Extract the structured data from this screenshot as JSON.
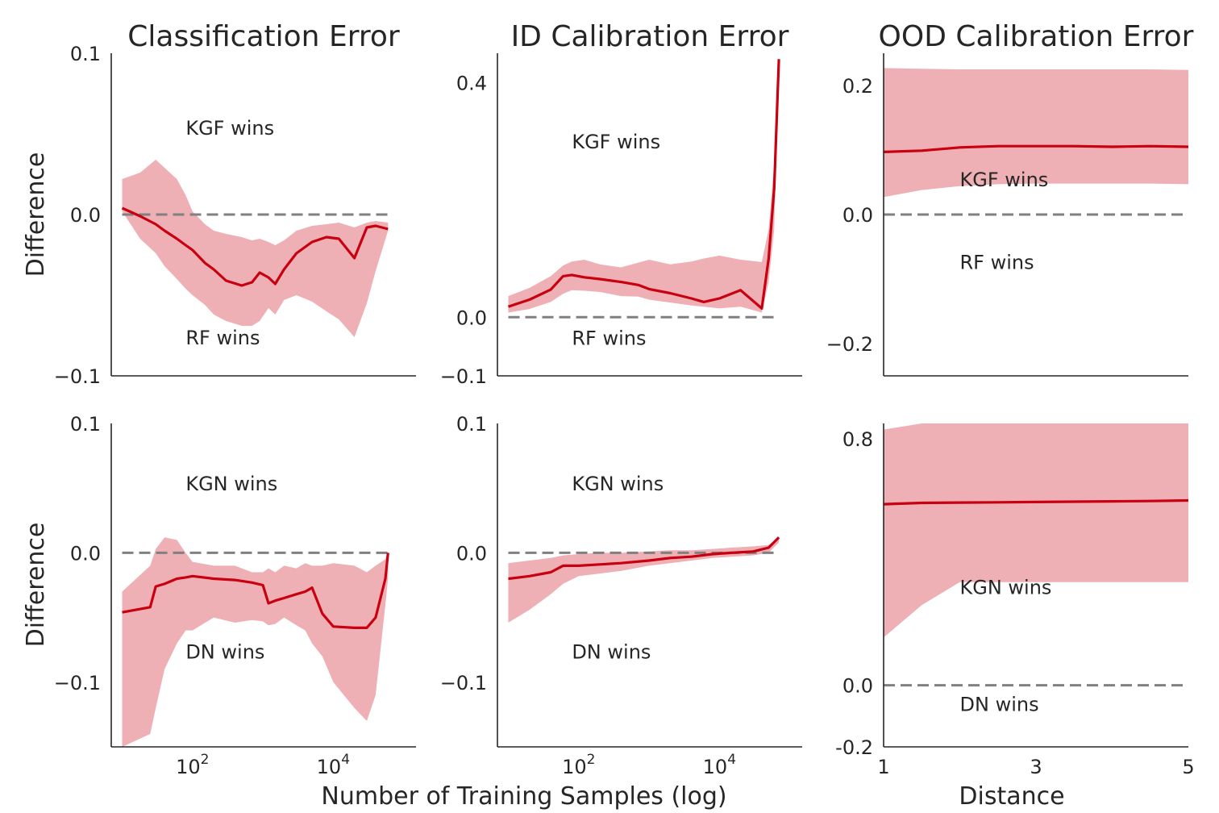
{
  "colors": {
    "line": "#c8000f",
    "band": "#eeb0b5",
    "zero": "#808080",
    "text": "#262626"
  },
  "figure": {
    "column_titles": [
      "Classification Error",
      "ID Calibration Error",
      "OOD Calibration Error"
    ],
    "row_ylabels": [
      "Difference",
      "Difference"
    ],
    "xlabel_left": "Number of Training Samples (log)",
    "xlabel_right": "Distance"
  },
  "chart_data": [
    {
      "type": "area",
      "row": 0,
      "col": 0,
      "title": "Classification Error",
      "ylabel": "Difference",
      "xscale": "log",
      "xlim": [
        7,
        150000
      ],
      "ylim": [
        -0.1,
        0.1
      ],
      "yticks": [
        0.1,
        0.0,
        -0.1
      ],
      "ytick_labels": [
        "0.1",
        "0.0",
        "−0.1"
      ],
      "xticks": [],
      "xtick_labels": [],
      "annotations": [
        {
          "text": "KGF wins",
          "x": 80,
          "y": 0.054
        },
        {
          "text": "RF wins",
          "x": 80,
          "y": -0.076
        }
      ],
      "x": [
        10,
        18,
        30,
        40,
        60,
        80,
        100,
        150,
        200,
        300,
        500,
        700,
        900,
        1200,
        1500,
        2000,
        3000,
        5000,
        8000,
        12000,
        20000,
        30000,
        40000,
        60000
      ],
      "mean": [
        0.004,
        -0.001,
        -0.006,
        -0.01,
        -0.015,
        -0.019,
        -0.022,
        -0.03,
        -0.034,
        -0.041,
        -0.044,
        -0.042,
        -0.036,
        -0.039,
        -0.043,
        -0.034,
        -0.024,
        -0.017,
        -0.014,
        -0.015,
        -0.027,
        -0.008,
        -0.007,
        -0.009
      ],
      "upper": [
        0.022,
        0.026,
        0.034,
        0.029,
        0.022,
        0.012,
        0.002,
        -0.006,
        -0.01,
        -0.012,
        -0.014,
        -0.016,
        -0.015,
        -0.017,
        -0.019,
        -0.016,
        -0.01,
        -0.007,
        -0.006,
        -0.005,
        -0.008,
        -0.005,
        -0.004,
        -0.005
      ],
      "lower": [
        0.002,
        -0.015,
        -0.024,
        -0.032,
        -0.04,
        -0.046,
        -0.05,
        -0.056,
        -0.062,
        -0.066,
        -0.069,
        -0.069,
        -0.066,
        -0.058,
        -0.062,
        -0.053,
        -0.05,
        -0.054,
        -0.06,
        -0.065,
        -0.076,
        -0.055,
        -0.035,
        -0.01
      ]
    },
    {
      "type": "area",
      "row": 0,
      "col": 1,
      "title": "ID Calibration Error",
      "ylabel": "",
      "xscale": "log",
      "xlim": [
        7,
        150000
      ],
      "ylim": [
        -0.1,
        0.45
      ],
      "yticks": [
        0.4,
        0.0,
        -0.1
      ],
      "ytick_labels": [
        "0.4",
        "0.0",
        "−0.1"
      ],
      "xticks": [],
      "xtick_labels": [],
      "annotations": [
        {
          "text": "KGF wins",
          "x": 80,
          "y": 0.3
        },
        {
          "text": "RF wins",
          "x": 80,
          "y": -0.035
        }
      ],
      "x": [
        10,
        20,
        40,
        60,
        80,
        120,
        200,
        400,
        700,
        1000,
        2000,
        4000,
        6000,
        10000,
        20000,
        40000,
        50000,
        60000,
        70000
      ],
      "mean": [
        0.018,
        0.03,
        0.047,
        0.07,
        0.072,
        0.068,
        0.065,
        0.06,
        0.055,
        0.048,
        0.041,
        0.032,
        0.026,
        0.032,
        0.046,
        0.015,
        0.1,
        0.22,
        0.44
      ],
      "upper": [
        0.036,
        0.05,
        0.07,
        0.088,
        0.095,
        0.098,
        0.09,
        0.085,
        0.093,
        0.098,
        0.09,
        0.095,
        0.1,
        0.105,
        0.098,
        0.094,
        0.15,
        0.26,
        0.44
      ],
      "lower": [
        0.008,
        0.014,
        0.026,
        0.04,
        0.046,
        0.045,
        0.043,
        0.036,
        0.035,
        0.03,
        0.025,
        0.02,
        0.018,
        0.015,
        0.018,
        0.008,
        0.06,
        0.15,
        0.44
      ]
    },
    {
      "type": "area",
      "row": 0,
      "col": 2,
      "title": "OOD Calibration Error",
      "ylabel": "",
      "xscale": "linear",
      "xlim": [
        1,
        5
      ],
      "ylim": [
        -0.25,
        0.25
      ],
      "yticks": [
        0.2,
        0.0,
        -0.2
      ],
      "ytick_labels": [
        "0.2",
        "0.0",
        "−0.2"
      ],
      "xticks": [],
      "xtick_labels": [],
      "annotations": [
        {
          "text": "KGF wins",
          "x": 2,
          "y": 0.055
        },
        {
          "text": "RF wins",
          "x": 2,
          "y": -0.073
        }
      ],
      "x": [
        1,
        1.5,
        2,
        2.5,
        3,
        3.5,
        4,
        4.5,
        5
      ],
      "mean": [
        0.097,
        0.099,
        0.104,
        0.106,
        0.106,
        0.106,
        0.105,
        0.106,
        0.105
      ],
      "upper": [
        0.227,
        0.226,
        0.225,
        0.225,
        0.225,
        0.225,
        0.225,
        0.225,
        0.224
      ],
      "lower": [
        0.027,
        0.038,
        0.044,
        0.047,
        0.048,
        0.048,
        0.048,
        0.048,
        0.047
      ]
    },
    {
      "type": "area",
      "row": 1,
      "col": 0,
      "title": "",
      "ylabel": "Difference",
      "xscale": "log",
      "xlim": [
        7,
        150000
      ],
      "ylim": [
        -0.15,
        0.1
      ],
      "yticks": [
        0.1,
        0.0,
        -0.1
      ],
      "ytick_labels": [
        "0.1",
        "0.0",
        "−0.1"
      ],
      "xticks": [
        100,
        10000
      ],
      "xtick_labels": [
        "10",
        "10"
      ],
      "xtick_exponents": [
        "2",
        "4"
      ],
      "annotations": [
        {
          "text": "KGN wins",
          "x": 80,
          "y": 0.054
        },
        {
          "text": "DN wins",
          "x": 80,
          "y": -0.076
        }
      ],
      "x": [
        10,
        25,
        30,
        40,
        60,
        80,
        100,
        200,
        400,
        700,
        1000,
        1200,
        1500,
        2000,
        3000,
        4000,
        5000,
        7000,
        10000,
        20000,
        30000,
        40000,
        55000,
        60000
      ],
      "mean": [
        -0.046,
        -0.042,
        -0.026,
        -0.024,
        -0.02,
        -0.019,
        -0.018,
        -0.02,
        -0.021,
        -0.023,
        -0.025,
        -0.039,
        -0.037,
        -0.035,
        -0.032,
        -0.03,
        -0.027,
        -0.047,
        -0.057,
        -0.058,
        -0.058,
        -0.05,
        -0.02,
        0.0
      ],
      "upper": [
        -0.03,
        -0.01,
        0.003,
        0.012,
        0.01,
        0.0,
        -0.007,
        -0.01,
        -0.01,
        -0.015,
        -0.015,
        -0.012,
        -0.015,
        -0.01,
        -0.012,
        -0.008,
        -0.01,
        -0.01,
        -0.008,
        -0.01,
        -0.015,
        -0.01,
        -0.005,
        0.0
      ],
      "lower": [
        -0.15,
        -0.14,
        -0.12,
        -0.09,
        -0.07,
        -0.06,
        -0.06,
        -0.05,
        -0.054,
        -0.052,
        -0.053,
        -0.056,
        -0.055,
        -0.05,
        -0.056,
        -0.06,
        -0.07,
        -0.08,
        -0.1,
        -0.12,
        -0.13,
        -0.11,
        -0.04,
        -0.02
      ]
    },
    {
      "type": "area",
      "row": 1,
      "col": 1,
      "title": "",
      "ylabel": "",
      "xscale": "log",
      "xlim": [
        7,
        150000
      ],
      "ylim": [
        -0.15,
        0.1
      ],
      "yticks": [
        0.1,
        0.0,
        -0.1
      ],
      "ytick_labels": [
        "0.1",
        "0.0",
        "−0.1"
      ],
      "xticks": [
        100,
        10000
      ],
      "xtick_labels": [
        "10",
        "10"
      ],
      "xtick_exponents": [
        "2",
        "4"
      ],
      "annotations": [
        {
          "text": "KGN wins",
          "x": 80,
          "y": 0.054
        },
        {
          "text": "DN wins",
          "x": 80,
          "y": -0.076
        }
      ],
      "x": [
        10,
        20,
        40,
        60,
        100,
        200,
        400,
        1000,
        2000,
        4000,
        8000,
        15000,
        30000,
        50000,
        70000
      ],
      "mean": [
        -0.02,
        -0.018,
        -0.015,
        -0.01,
        -0.01,
        -0.009,
        -0.008,
        -0.006,
        -0.004,
        -0.003,
        -0.001,
        0.0,
        0.001,
        0.004,
        0.012
      ],
      "upper": [
        -0.008,
        -0.006,
        -0.004,
        -0.002,
        -0.001,
        0.0,
        0.0,
        0.001,
        0.002,
        0.002,
        0.003,
        0.004,
        0.005,
        0.006,
        0.012
      ],
      "lower": [
        -0.054,
        -0.044,
        -0.032,
        -0.024,
        -0.018,
        -0.016,
        -0.014,
        -0.01,
        -0.008,
        -0.006,
        -0.004,
        -0.003,
        -0.002,
        0.0,
        0.008
      ]
    },
    {
      "type": "area",
      "row": 1,
      "col": 2,
      "title": "",
      "ylabel": "",
      "xscale": "linear",
      "xlim": [
        1,
        5
      ],
      "ylim": [
        -0.2,
        0.85
      ],
      "yticks": [
        0.8,
        0.0,
        -0.2
      ],
      "ytick_labels": [
        "0.8",
        "0.0",
        "-0.2"
      ],
      "xticks": [
        1,
        3,
        5
      ],
      "xtick_labels": [
        "1",
        "3",
        "5"
      ],
      "annotations": [
        {
          "text": "KGN wins",
          "x": 2,
          "y": 0.32
        },
        {
          "text": "DN wins",
          "x": 2,
          "y": -0.06
        }
      ],
      "x": [
        1,
        1.5,
        2,
        2.5,
        3,
        3.5,
        4,
        4.5,
        5
      ],
      "mean": [
        0.588,
        0.592,
        0.593,
        0.594,
        0.595,
        0.596,
        0.597,
        0.598,
        0.6
      ],
      "upper": [
        0.83,
        0.85,
        0.85,
        0.85,
        0.85,
        0.85,
        0.85,
        0.85,
        0.85
      ],
      "lower": [
        0.155,
        0.26,
        0.335,
        0.335,
        0.335,
        0.335,
        0.335,
        0.335,
        0.335
      ]
    }
  ]
}
